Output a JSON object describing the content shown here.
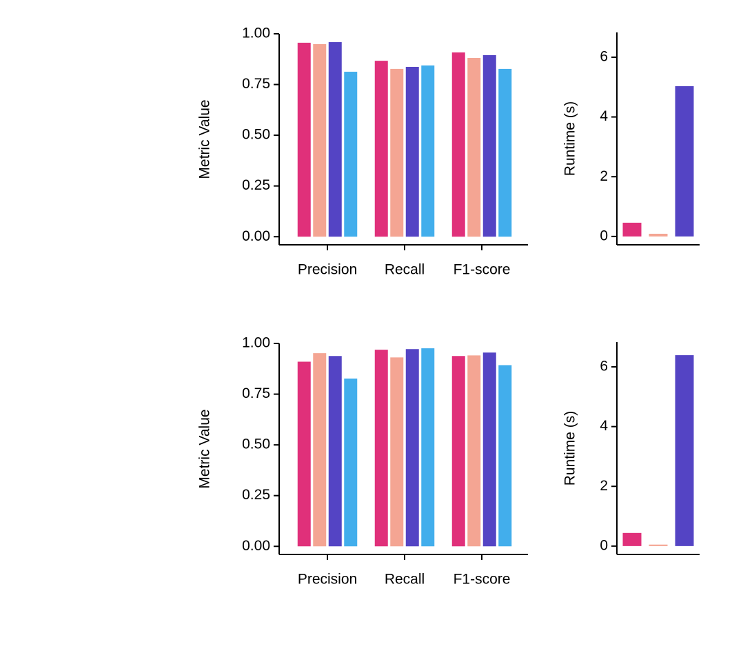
{
  "chart_data": [
    {
      "type": "grouped_bar",
      "ylabel": "Metric Value",
      "categories": [
        "Precision",
        "Recall",
        "F1-score"
      ],
      "series": [
        {
          "color": "#e0307a",
          "values": [
            0.956,
            0.867,
            0.908
          ]
        },
        {
          "color": "#f4a593",
          "values": [
            0.949,
            0.827,
            0.881
          ]
        },
        {
          "color": "#5444c4",
          "values": [
            0.959,
            0.837,
            0.895
          ]
        },
        {
          "color": "#42aeec",
          "values": [
            0.813,
            0.844,
            0.827
          ]
        }
      ],
      "ylim": [
        -0.04,
        1.0
      ],
      "yticks": [
        {
          "value": 0,
          "label": "0.00"
        },
        {
          "value": 0.25,
          "label": "0.25"
        },
        {
          "value": 0.5,
          "label": "0.50"
        },
        {
          "value": 0.75,
          "label": "0.75"
        },
        {
          "value": 1,
          "label": "1.00"
        }
      ]
    },
    {
      "type": "bar",
      "ylabel": "Runtime (s)",
      "categories": [
        null,
        null,
        null
      ],
      "values": [
        0.46,
        0.09,
        5.03
      ],
      "colors": [
        "#e0307a",
        "#f4a593",
        "#5444c4"
      ],
      "ylim": [
        -0.28,
        6.83
      ],
      "yticks": [
        0,
        2,
        4,
        6
      ]
    },
    {
      "type": "grouped_bar",
      "ylabel": "Metric Value",
      "categories": [
        "Precision",
        "Recall",
        "F1-score"
      ],
      "series": [
        {
          "color": "#e0307a",
          "values": [
            0.91,
            0.969,
            0.938
          ]
        },
        {
          "color": "#f4a593",
          "values": [
            0.952,
            0.931,
            0.941
          ]
        },
        {
          "color": "#5444c4",
          "values": [
            0.938,
            0.972,
            0.955
          ]
        },
        {
          "color": "#42aeec",
          "values": [
            0.827,
            0.976,
            0.893
          ]
        }
      ],
      "ylim": [
        -0.04,
        1.0
      ],
      "yticks": [
        {
          "value": 0,
          "label": "0.00"
        },
        {
          "value": 0.25,
          "label": "0.25"
        },
        {
          "value": 0.5,
          "label": "0.50"
        },
        {
          "value": 0.75,
          "label": "0.75"
        },
        {
          "value": 1,
          "label": "1.00"
        }
      ]
    },
    {
      "type": "bar",
      "ylabel": "Runtime (s)",
      "categories": [
        null,
        null,
        null
      ],
      "values": [
        0.44,
        0.05,
        6.39
      ],
      "colors": [
        "#e0307a",
        "#f4a593",
        "#5444c4"
      ],
      "ylim": [
        -0.28,
        6.83
      ],
      "yticks": [
        0,
        2,
        4,
        6
      ]
    }
  ]
}
